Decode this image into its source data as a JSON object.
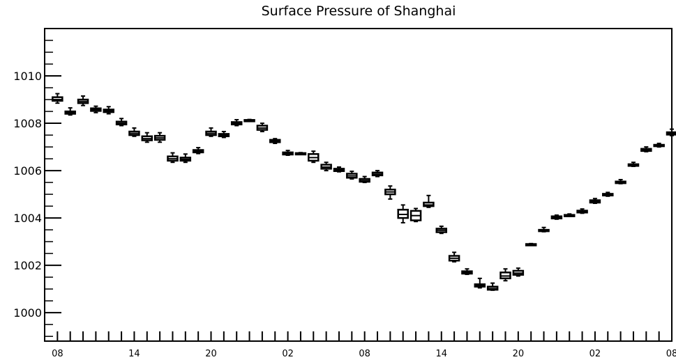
{
  "chart_data": {
    "type": "boxplot",
    "title": "Surface Pressure of Shanghai",
    "xlabel": "",
    "ylabel": "",
    "ylim": [
      998.8,
      1012.0
    ],
    "xlim": [
      -1,
      48
    ],
    "yticks": [
      1000,
      1002,
      1004,
      1006,
      1008,
      1010
    ],
    "ytick_labels": [
      "1000",
      "1002",
      "1004",
      "1006",
      "1008",
      "1010"
    ],
    "xtick_positions": [
      0,
      6,
      12,
      18,
      24,
      30,
      36,
      42,
      48
    ],
    "xtick_labels": [
      "08",
      "14",
      "20",
      "02",
      "08",
      "14",
      "20",
      "02",
      "08"
    ],
    "grid": false,
    "legend": "none",
    "boxes": [
      {
        "x": 0,
        "min": 1008.85,
        "q1": 1008.95,
        "median": 1009.0,
        "q3": 1009.1,
        "max": 1009.25
      },
      {
        "x": 1,
        "min": 1008.35,
        "q1": 1008.4,
        "median": 1008.45,
        "q3": 1008.5,
        "max": 1008.65
      },
      {
        "x": 2,
        "min": 1008.75,
        "q1": 1008.85,
        "median": 1008.92,
        "q3": 1009.0,
        "max": 1009.15
      },
      {
        "x": 3,
        "min": 1008.45,
        "q1": 1008.52,
        "median": 1008.58,
        "q3": 1008.63,
        "max": 1008.72
      },
      {
        "x": 4,
        "min": 1008.4,
        "q1": 1008.47,
        "median": 1008.53,
        "q3": 1008.58,
        "max": 1008.7
      },
      {
        "x": 5,
        "min": 1007.9,
        "q1": 1007.95,
        "median": 1008.0,
        "q3": 1008.07,
        "max": 1008.2
      },
      {
        "x": 6,
        "min": 1007.45,
        "q1": 1007.5,
        "median": 1007.57,
        "q3": 1007.65,
        "max": 1007.8
      },
      {
        "x": 7,
        "min": 1007.2,
        "q1": 1007.28,
        "median": 1007.35,
        "q3": 1007.45,
        "max": 1007.6
      },
      {
        "x": 8,
        "min": 1007.2,
        "q1": 1007.3,
        "median": 1007.38,
        "q3": 1007.47,
        "max": 1007.6
      },
      {
        "x": 9,
        "min": 1006.35,
        "q1": 1006.42,
        "median": 1006.5,
        "q3": 1006.6,
        "max": 1006.75
      },
      {
        "x": 10,
        "min": 1006.35,
        "q1": 1006.42,
        "median": 1006.48,
        "q3": 1006.55,
        "max": 1006.7
      },
      {
        "x": 11,
        "min": 1006.72,
        "q1": 1006.77,
        "median": 1006.82,
        "q3": 1006.87,
        "max": 1006.97
      },
      {
        "x": 12,
        "min": 1007.45,
        "q1": 1007.5,
        "median": 1007.57,
        "q3": 1007.65,
        "max": 1007.8
      },
      {
        "x": 13,
        "min": 1007.4,
        "q1": 1007.45,
        "median": 1007.5,
        "q3": 1007.55,
        "max": 1007.65
      },
      {
        "x": 14,
        "min": 1007.9,
        "q1": 1007.95,
        "median": 1008.0,
        "q3": 1008.05,
        "max": 1008.15
      },
      {
        "x": 15,
        "min": 1008.08,
        "q1": 1008.1,
        "median": 1008.12,
        "q3": 1008.14,
        "max": 1008.16
      },
      {
        "x": 16,
        "min": 1007.65,
        "q1": 1007.72,
        "median": 1007.8,
        "q3": 1007.9,
        "max": 1008.0
      },
      {
        "x": 17,
        "min": 1007.15,
        "q1": 1007.2,
        "median": 1007.25,
        "q3": 1007.3,
        "max": 1007.35
      },
      {
        "x": 18,
        "min": 1006.65,
        "q1": 1006.68,
        "median": 1006.72,
        "q3": 1006.77,
        "max": 1006.85
      },
      {
        "x": 19,
        "min": 1006.68,
        "q1": 1006.7,
        "median": 1006.72,
        "q3": 1006.74,
        "max": 1006.76
      },
      {
        "x": 20,
        "min": 1006.35,
        "q1": 1006.42,
        "median": 1006.55,
        "q3": 1006.7,
        "max": 1006.82
      },
      {
        "x": 21,
        "min": 1006.0,
        "q1": 1006.08,
        "median": 1006.15,
        "q3": 1006.25,
        "max": 1006.35
      },
      {
        "x": 22,
        "min": 1005.95,
        "q1": 1005.98,
        "median": 1006.02,
        "q3": 1006.08,
        "max": 1006.15
      },
      {
        "x": 23,
        "min": 1005.65,
        "q1": 1005.7,
        "median": 1005.78,
        "q3": 1005.87,
        "max": 1005.97
      },
      {
        "x": 24,
        "min": 1005.5,
        "q1": 1005.53,
        "median": 1005.58,
        "q3": 1005.65,
        "max": 1005.75
      },
      {
        "x": 25,
        "min": 1005.75,
        "q1": 1005.8,
        "median": 1005.85,
        "q3": 1005.92,
        "max": 1006.0
      },
      {
        "x": 26,
        "min": 1004.8,
        "q1": 1005.0,
        "median": 1005.1,
        "q3": 1005.2,
        "max": 1005.35
      },
      {
        "x": 27,
        "min": 1003.8,
        "q1": 1004.0,
        "median": 1004.15,
        "q3": 1004.35,
        "max": 1004.55
      },
      {
        "x": 28,
        "min": 1003.85,
        "q1": 1003.9,
        "median": 1004.1,
        "q3": 1004.3,
        "max": 1004.4
      },
      {
        "x": 29,
        "min": 1004.45,
        "q1": 1004.5,
        "median": 1004.55,
        "q3": 1004.65,
        "max": 1004.95
      },
      {
        "x": 30,
        "min": 1003.35,
        "q1": 1003.4,
        "median": 1003.48,
        "q3": 1003.55,
        "max": 1003.65
      },
      {
        "x": 31,
        "min": 1002.15,
        "q1": 1002.2,
        "median": 1002.3,
        "q3": 1002.4,
        "max": 1002.55
      },
      {
        "x": 32,
        "min": 1001.62,
        "q1": 1001.65,
        "median": 1001.7,
        "q3": 1001.75,
        "max": 1001.85
      },
      {
        "x": 33,
        "min": 1001.05,
        "q1": 1001.1,
        "median": 1001.15,
        "q3": 1001.2,
        "max": 1001.45
      },
      {
        "x": 34,
        "min": 1000.95,
        "q1": 1000.97,
        "median": 1001.02,
        "q3": 1001.1,
        "max": 1001.25
      },
      {
        "x": 35,
        "min": 1001.35,
        "q1": 1001.45,
        "median": 1001.55,
        "q3": 1001.7,
        "max": 1001.85
      },
      {
        "x": 36,
        "min": 1001.55,
        "q1": 1001.6,
        "median": 1001.67,
        "q3": 1001.77,
        "max": 1001.88
      },
      {
        "x": 37,
        "min": 1002.85,
        "q1": 1002.86,
        "median": 1002.88,
        "q3": 1002.9,
        "max": 1002.92
      },
      {
        "x": 38,
        "min": 1003.42,
        "q1": 1003.45,
        "median": 1003.47,
        "q3": 1003.5,
        "max": 1003.6
      },
      {
        "x": 39,
        "min": 1003.95,
        "q1": 1003.98,
        "median": 1004.02,
        "q3": 1004.07,
        "max": 1004.12
      },
      {
        "x": 40,
        "min": 1004.07,
        "q1": 1004.09,
        "median": 1004.11,
        "q3": 1004.13,
        "max": 1004.17
      },
      {
        "x": 41,
        "min": 1004.2,
        "q1": 1004.23,
        "median": 1004.27,
        "q3": 1004.31,
        "max": 1004.38
      },
      {
        "x": 42,
        "min": 1004.62,
        "q1": 1004.65,
        "median": 1004.7,
        "q3": 1004.75,
        "max": 1004.82
      },
      {
        "x": 43,
        "min": 1004.92,
        "q1": 1004.95,
        "median": 1004.98,
        "q3": 1005.02,
        "max": 1005.08
      },
      {
        "x": 44,
        "min": 1005.45,
        "q1": 1005.47,
        "median": 1005.5,
        "q3": 1005.54,
        "max": 1005.62
      },
      {
        "x": 45,
        "min": 1006.18,
        "q1": 1006.2,
        "median": 1006.23,
        "q3": 1006.27,
        "max": 1006.35
      },
      {
        "x": 46,
        "min": 1006.8,
        "q1": 1006.83,
        "median": 1006.87,
        "q3": 1006.92,
        "max": 1007.0
      },
      {
        "x": 47,
        "min": 1007.0,
        "q1": 1007.03,
        "median": 1007.05,
        "q3": 1007.09,
        "max": 1007.15
      },
      {
        "x": 48,
        "min": 1007.48,
        "q1": 1007.52,
        "median": 1007.57,
        "q3": 1007.62,
        "max": 1007.75
      }
    ]
  }
}
